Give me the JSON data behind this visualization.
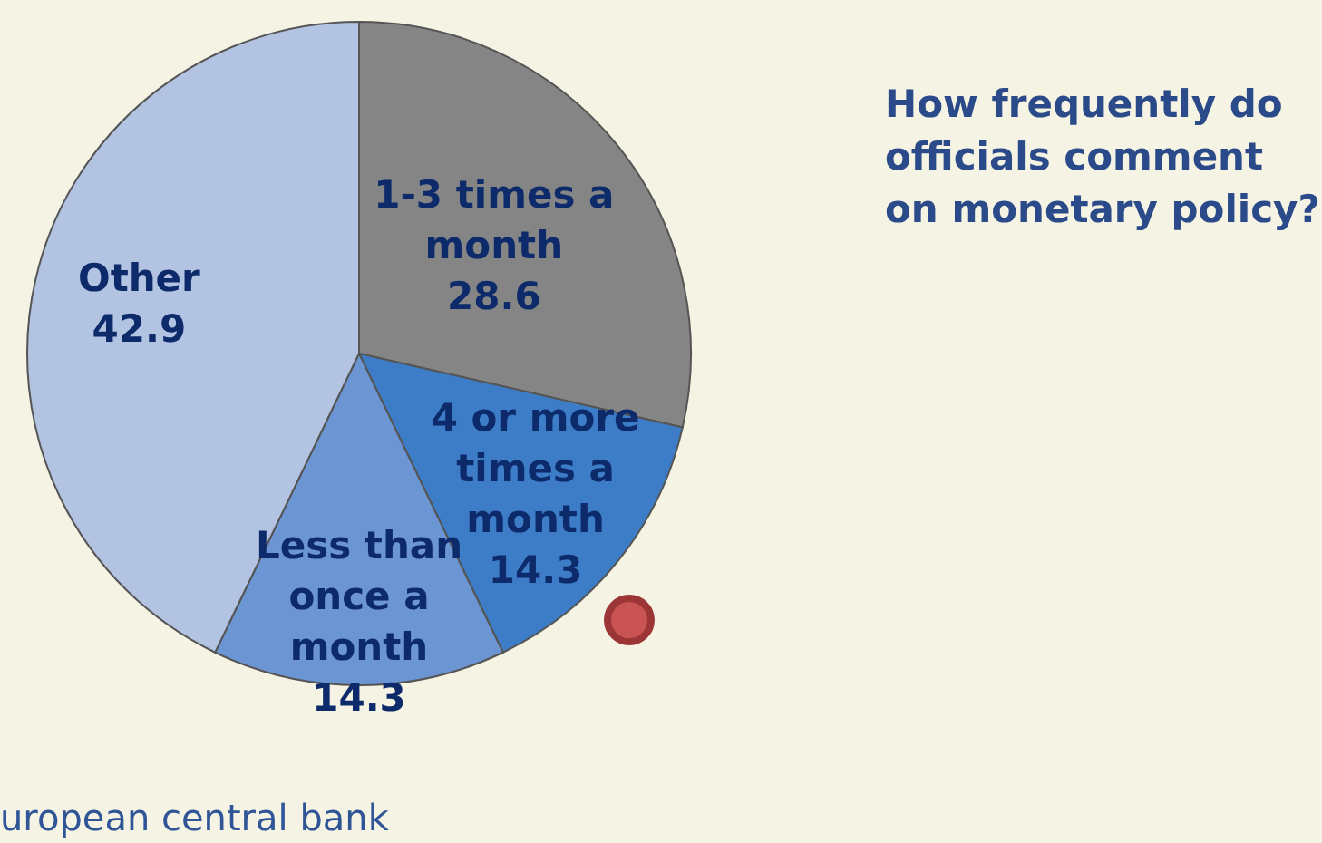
{
  "chart_data": {
    "type": "pie",
    "title": "How frequently do officials comment on monetary policy?",
    "categories": [
      "1-3 times a month",
      "4 or more times a month",
      "Less than once a month",
      "Other"
    ],
    "values": [
      28.6,
      14.3,
      14.3,
      42.9
    ],
    "colors": [
      "#858585",
      "#3d7dc8",
      "#6c95d3",
      "#b3c4e3"
    ],
    "data_labels": true,
    "annotations": [
      "uropean central bank"
    ]
  }
}
